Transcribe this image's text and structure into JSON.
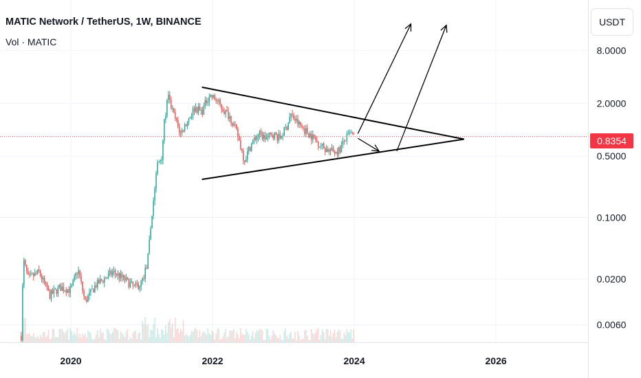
{
  "header": {
    "title": "MATIC Network / TetherUS, 1W, BINANCE",
    "volume_label": "Vol · MATIC",
    "currency_button": "USDT"
  },
  "price_tag": {
    "value": "0.8354",
    "price": 0.8354,
    "color": "#f23645"
  },
  "chart_data": {
    "type": "candlestick",
    "scale": "log",
    "xlim": [
      2019.0,
      2027.3
    ],
    "ylim": [
      0.0038,
      30
    ],
    "y_ticks": [
      {
        "value": 8,
        "label": "8.0000"
      },
      {
        "value": 2,
        "label": "2.0000"
      },
      {
        "value": 0.5,
        "label": "0.5000"
      },
      {
        "value": 0.1,
        "label": "0.1000"
      },
      {
        "value": 0.02,
        "label": "0.0200"
      },
      {
        "value": 0.006,
        "label": "0.0060"
      }
    ],
    "x_ticks": [
      {
        "value": 2020,
        "label": "2020"
      },
      {
        "value": 2022,
        "label": "2022"
      },
      {
        "value": 2024,
        "label": "2024"
      },
      {
        "value": 2026,
        "label": "2026"
      }
    ],
    "up_color": "#26a69a",
    "down_color": "#ef5350",
    "price_path": [
      [
        2019.3,
        0.0045
      ],
      [
        2019.33,
        0.033
      ],
      [
        2019.4,
        0.02
      ],
      [
        2019.55,
        0.024
      ],
      [
        2019.7,
        0.013
      ],
      [
        2019.85,
        0.016
      ],
      [
        2020.0,
        0.015
      ],
      [
        2020.1,
        0.026
      ],
      [
        2020.2,
        0.011
      ],
      [
        2020.35,
        0.017
      ],
      [
        2020.5,
        0.021
      ],
      [
        2020.6,
        0.024
      ],
      [
        2020.75,
        0.02
      ],
      [
        2020.9,
        0.016
      ],
      [
        2021.0,
        0.018
      ],
      [
        2021.08,
        0.03
      ],
      [
        2021.15,
        0.12
      ],
      [
        2021.22,
        0.4
      ],
      [
        2021.28,
        0.5
      ],
      [
        2021.32,
        1.2
      ],
      [
        2021.37,
        2.4
      ],
      [
        2021.45,
        1.5
      ],
      [
        2021.55,
        0.9
      ],
      [
        2021.65,
        1.3
      ],
      [
        2021.75,
        1.8
      ],
      [
        2021.85,
        1.6
      ],
      [
        2021.95,
        2.5
      ],
      [
        2022.05,
        2.2
      ],
      [
        2022.15,
        1.7
      ],
      [
        2022.25,
        1.4
      ],
      [
        2022.35,
        0.9
      ],
      [
        2022.45,
        0.45
      ],
      [
        2022.55,
        0.7
      ],
      [
        2022.65,
        0.9
      ],
      [
        2022.75,
        0.8
      ],
      [
        2022.85,
        0.9
      ],
      [
        2022.95,
        0.8
      ],
      [
        2023.05,
        1.1
      ],
      [
        2023.1,
        1.5
      ],
      [
        2023.2,
        1.2
      ],
      [
        2023.3,
        1.0
      ],
      [
        2023.4,
        0.85
      ],
      [
        2023.5,
        0.7
      ],
      [
        2023.6,
        0.6
      ],
      [
        2023.7,
        0.56
      ],
      [
        2023.8,
        0.6
      ],
      [
        2023.88,
        0.8
      ],
      [
        2023.95,
        0.9
      ],
      [
        2024.0,
        0.835
      ]
    ],
    "drawings": [
      {
        "name": "triangle-upper-line",
        "points": [
          [
            2021.85,
            3.05
          ],
          [
            2025.55,
            0.78
          ]
        ]
      },
      {
        "name": "triangle-lower-line",
        "points": [
          [
            2021.85,
            0.272
          ],
          [
            2025.55,
            0.78
          ]
        ]
      },
      {
        "name": "arrow-pullback",
        "points": [
          [
            2024.05,
            0.8
          ],
          [
            2024.35,
            0.57
          ]
        ],
        "arrow": true
      },
      {
        "name": "arrow-breakout-1",
        "points": [
          [
            2024.05,
            0.9
          ],
          [
            2024.8,
            16.0
          ]
        ],
        "arrow": true
      },
      {
        "name": "arrow-breakout-2",
        "points": [
          [
            2024.6,
            0.57
          ],
          [
            2025.3,
            15.5
          ]
        ],
        "arrow": true
      }
    ]
  }
}
